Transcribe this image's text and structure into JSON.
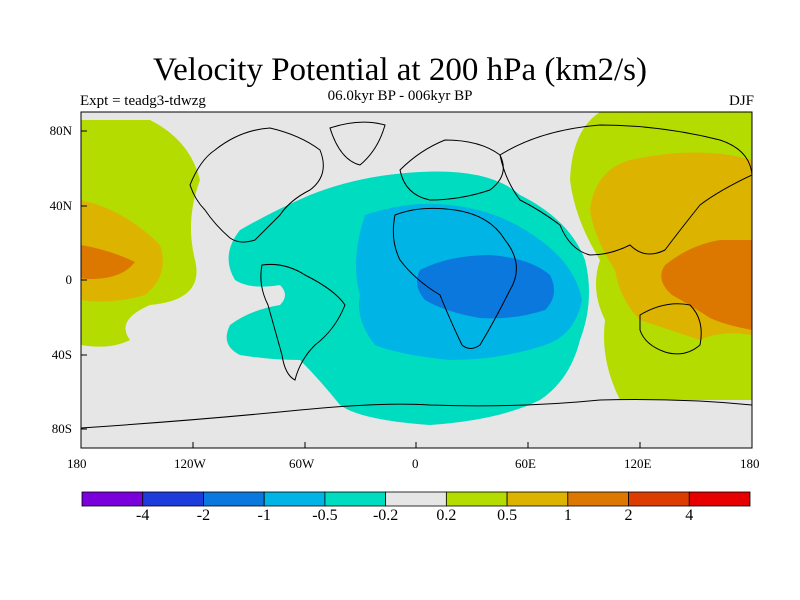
{
  "title": "Velocity Potential at 200 hPa (km2/s)",
  "subtitle": "06.0kyr BP - 006kyr BP",
  "expt_label": "Expt = teadg3-tdwzg",
  "season": "DJF",
  "x_ticks": [
    "180",
    "120W",
    "60W",
    "0",
    "60E",
    "120E",
    "180"
  ],
  "y_ticks": [
    "80N",
    "40N",
    "0",
    "40S",
    "80S"
  ],
  "colorbar": {
    "labels": [
      "-4",
      "-2",
      "-1",
      "-0.5",
      "-0.2",
      "0.2",
      "0.5",
      "1",
      "2",
      "4"
    ],
    "colors": [
      "#7a00dc",
      "#1e3cdc",
      "#0a78dc",
      "#00b4e6",
      "#00dcc0",
      "#e6e6e6",
      "#b4dc00",
      "#dcb400",
      "#dc7800",
      "#dc3c00",
      "#e60000"
    ]
  },
  "chart_data": {
    "type": "contour-map",
    "variable": "Velocity Potential at 200 hPa",
    "units": "km2/s",
    "levels": [
      -4,
      -2,
      -1,
      -0.5,
      -0.2,
      0.2,
      0.5,
      1,
      2,
      4
    ],
    "xlim": [
      -180,
      180
    ],
    "ylim": [
      -90,
      90
    ],
    "features": [
      {
        "region": "Central Africa / Indian Ocean",
        "value_range": [
          -1,
          -0.5
        ]
      },
      {
        "region": "Atlantic / Africa / Europe broad",
        "value_range": [
          -0.5,
          -0.2
        ]
      },
      {
        "region": "Asia / North Pacific",
        "value_range": [
          0.5,
          1
        ]
      },
      {
        "region": "Western Pacific maritime continent",
        "value_range": [
          1,
          2
        ]
      },
      {
        "region": "Central Pacific",
        "value_range": [
          0.5,
          1
        ]
      }
    ]
  }
}
